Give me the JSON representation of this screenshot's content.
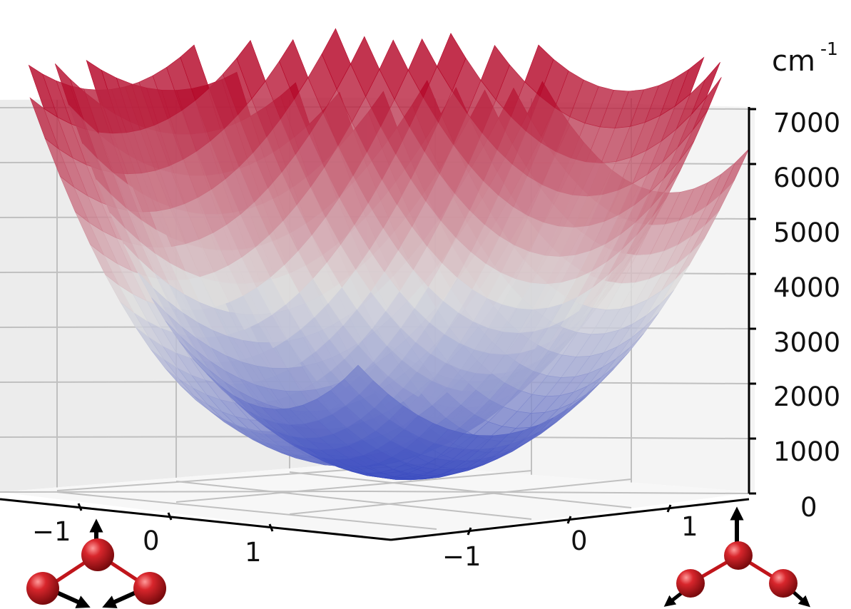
{
  "chart_data": {
    "type": "surface",
    "title": "",
    "z_unit": {
      "base": "cm",
      "exponent": "-1"
    },
    "z_ticks": [
      "0",
      "1000",
      "2000",
      "3000",
      "4000",
      "5000",
      "6000",
      "7000"
    ],
    "zlim": [
      0,
      7000
    ],
    "x_ticks": [
      "−1",
      "0",
      "1"
    ],
    "y_ticks": [
      "−1",
      "0",
      "1"
    ],
    "xlim": [
      -1.5,
      1.5
    ],
    "ylim": [
      -1.5,
      1.5
    ],
    "grid": true,
    "colormap": "coolwarm",
    "series": [
      {
        "description": "symmetric stretch well",
        "min_value": 0,
        "max_value": 6300
      },
      {
        "description": "asymmetric stretch well",
        "min_value": 800,
        "max_value": 7500
      }
    ]
  },
  "colors": {
    "atom": "#c0151b",
    "bond": "#c0151b",
    "arrow": "#000000",
    "pane": "#f2f2f2",
    "grid": "#c0c0c0",
    "surface_low": "#3b4cc0",
    "surface_mid": "#dddddd",
    "surface_high": "#b40426"
  },
  "icons": {
    "left_molecule": "ozone-symmetric-stretch-mode-icon",
    "right_molecule": "ozone-asymmetric-stretch-mode-icon"
  }
}
